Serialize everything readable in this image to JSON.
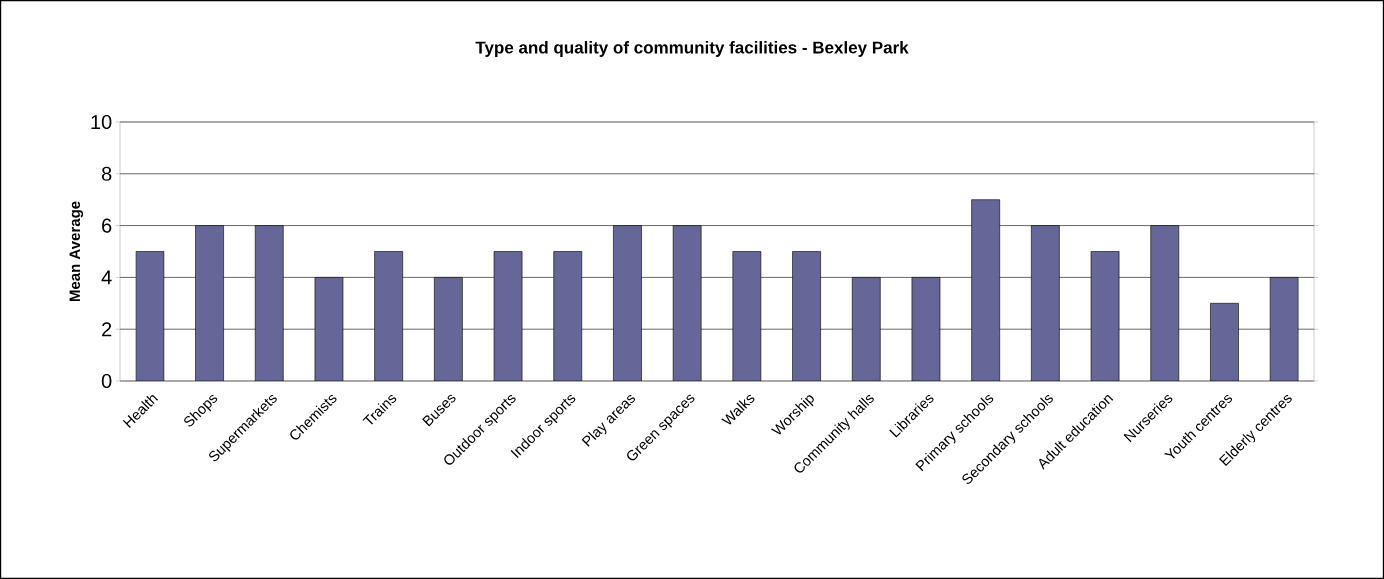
{
  "chart_data": {
    "type": "bar",
    "title": "Type and quality of community facilities - Bexley  Park",
    "ylabel": "Mean Average",
    "categories": [
      "Health",
      "Shops",
      "Supermarkets",
      "Chemists",
      "Trains",
      "Buses",
      "Outdoor sports",
      "Indoor sports",
      "Play areas",
      "Green spaces",
      "Walks",
      "Worship",
      "Community halls",
      "Libraries",
      "Primary schools",
      "Secondary schools",
      "Adult education",
      "Nurseries",
      "Youth centres",
      "Elderly centres"
    ],
    "values": [
      5,
      6,
      6,
      4,
      5,
      4,
      5,
      5,
      6,
      6,
      5,
      5,
      4,
      4,
      7,
      6,
      5,
      6,
      3,
      4
    ],
    "color": "#666699",
    "ylim": [
      0,
      10
    ],
    "yticks": [
      0,
      2,
      4,
      6,
      8,
      10
    ],
    "grid": "y"
  }
}
